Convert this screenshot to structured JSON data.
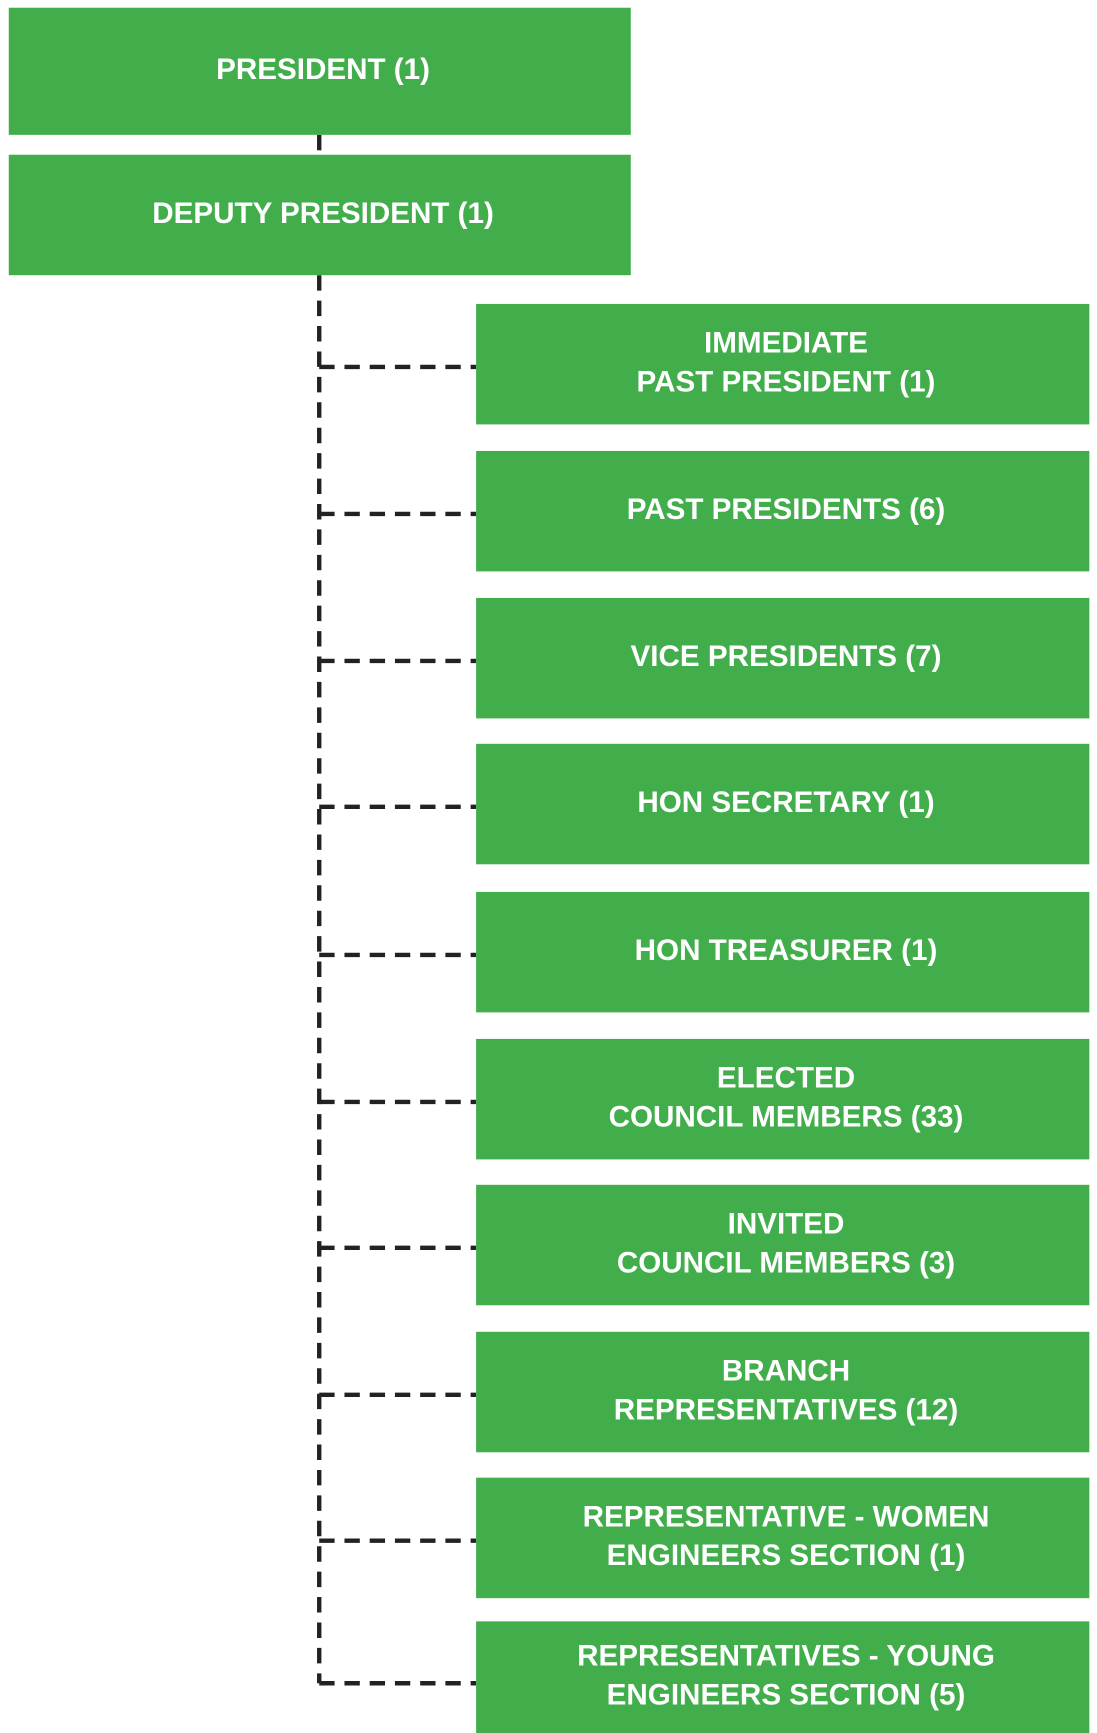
{
  "top": [
    {
      "lines": [
        "PRESIDENT (1)"
      ]
    },
    {
      "lines": [
        "DEPUTY PRESIDENT (1)"
      ]
    }
  ],
  "nodes": [
    {
      "lines": [
        "IMMEDIATE",
        "PAST PRESIDENT (1)"
      ]
    },
    {
      "lines": [
        "PAST PRESIDENTS (6)"
      ]
    },
    {
      "lines": [
        "VICE PRESIDENTS (7)"
      ]
    },
    {
      "lines": [
        "HON SECRETARY (1)"
      ]
    },
    {
      "lines": [
        "HON TREASURER (1)"
      ]
    },
    {
      "lines": [
        "ELECTED",
        "COUNCIL MEMBERS (33)"
      ]
    },
    {
      "lines": [
        "INVITED",
        "COUNCIL MEMBERS (3)"
      ]
    },
    {
      "lines": [
        "BRANCH",
        "REPRESENTATIVES (12)"
      ]
    },
    {
      "lines": [
        "REPRESENTATIVE - WOMEN",
        "ENGINEERS SECTION (1)"
      ]
    },
    {
      "lines": [
        "REPRESENTATIVES - YOUNG",
        "ENGINEERS SECTION (5)"
      ]
    }
  ]
}
